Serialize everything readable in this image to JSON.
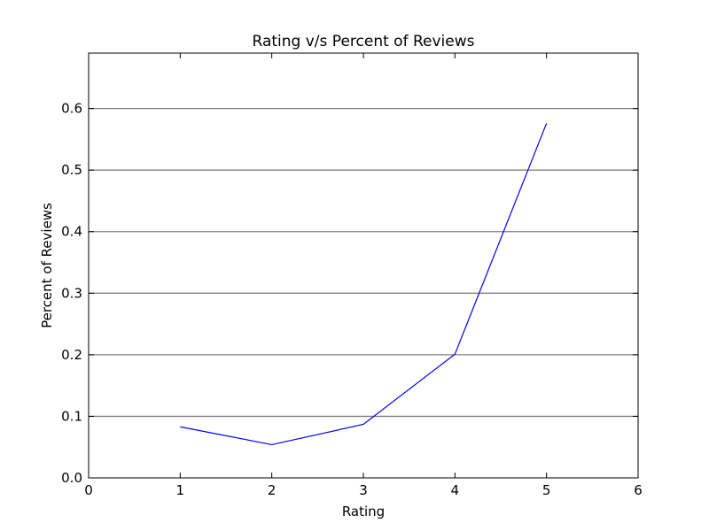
{
  "chart_data": {
    "type": "line",
    "title": "Rating v/s Percent of Reviews",
    "xlabel": "Rating",
    "ylabel": "Percent of Reviews",
    "xlim": [
      0,
      6
    ],
    "ylim": [
      0,
      0.69
    ],
    "xticks": [
      "0",
      "1",
      "2",
      "3",
      "4",
      "5",
      "6"
    ],
    "yticks": [
      "0.0",
      "0.1",
      "0.2",
      "0.3",
      "0.4",
      "0.5",
      "0.6"
    ],
    "grid": "horizontal",
    "series": [
      {
        "color": "#0000ff",
        "x": [
          1,
          2,
          3,
          4,
          5
        ],
        "y": [
          0.083,
          0.054,
          0.087,
          0.201,
          0.576
        ]
      }
    ]
  }
}
